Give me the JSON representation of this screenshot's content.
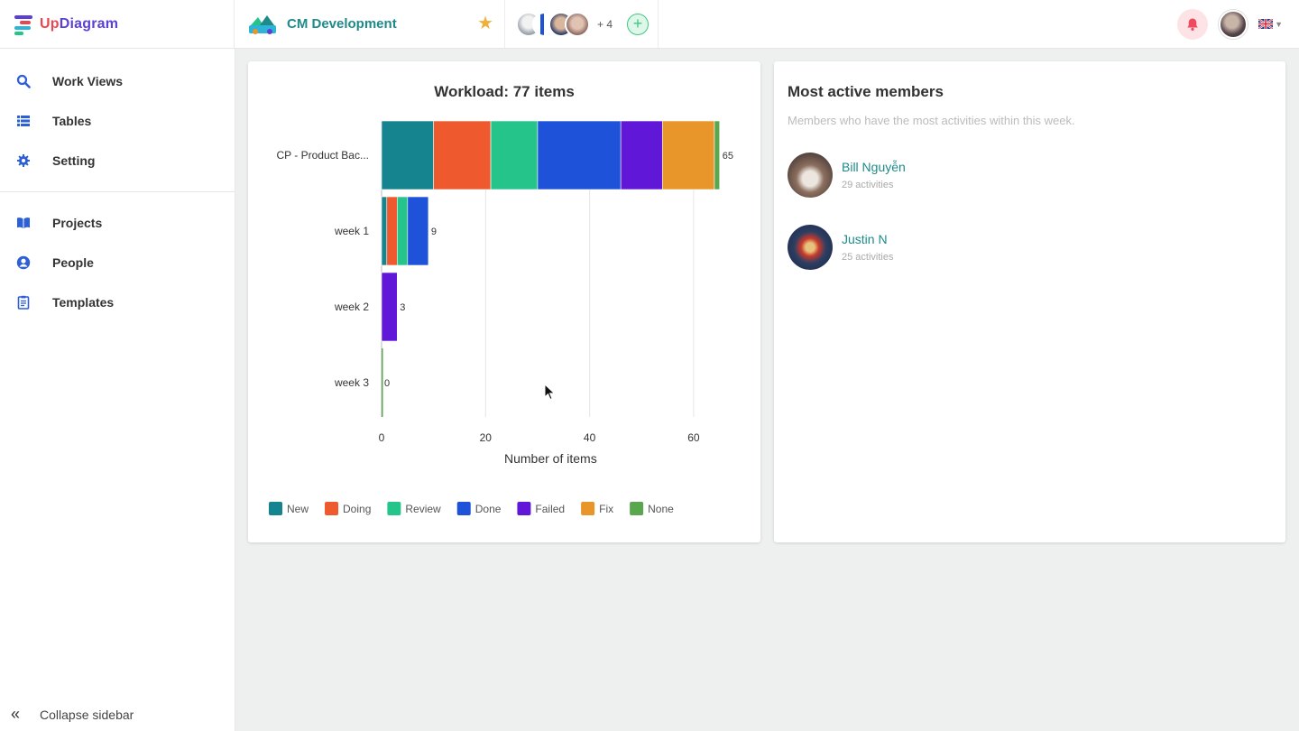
{
  "app": {
    "logo_prefix": "Up",
    "logo_suffix": "Diagram"
  },
  "project": {
    "title": "CM Development"
  },
  "members_bar": {
    "more_label": "+ 4",
    "add_label": "+"
  },
  "sidebar": {
    "items": [
      {
        "label": "Work Views",
        "icon": "search-icon"
      },
      {
        "label": "Tables",
        "icon": "list-icon"
      },
      {
        "label": "Setting",
        "icon": "gear-icon"
      },
      {
        "label": "Projects",
        "icon": "book-icon"
      },
      {
        "label": "People",
        "icon": "person-icon"
      },
      {
        "label": "Templates",
        "icon": "clipboard-icon"
      }
    ],
    "collapse_label": "Collapse sidebar"
  },
  "chart_card": {
    "title": "Workload: 77 items"
  },
  "members_card": {
    "title": "Most active members",
    "subtitle": "Members who have the most activities within this week.",
    "members": [
      {
        "name": "Bill Nguyễn",
        "activities": "29 activities"
      },
      {
        "name": "Justin N",
        "activities": "25 activities"
      }
    ]
  },
  "colors": {
    "New": "#16848f",
    "Doing": "#ee5a2e",
    "Review": "#24c48b",
    "Done": "#1e52d8",
    "Failed": "#6117d8",
    "Fix": "#e8952a",
    "None": "#5aa64e"
  },
  "chart_data": {
    "type": "bar",
    "orientation": "horizontal",
    "stacked": true,
    "title": "Workload: 77 items",
    "xlabel": "Number of items",
    "ylabel": "",
    "xlim": [
      0,
      65
    ],
    "xticks": [
      0,
      20,
      40,
      60
    ],
    "grid": true,
    "legend_position": "bottom",
    "categories": [
      "CP - Product Bac...",
      "week 1",
      "week 2",
      "week 3"
    ],
    "totals": [
      65,
      9,
      3,
      0
    ],
    "series": [
      {
        "name": "New",
        "values": [
          10,
          1,
          0,
          0
        ]
      },
      {
        "name": "Doing",
        "values": [
          11,
          2,
          0,
          0
        ]
      },
      {
        "name": "Review",
        "values": [
          9,
          2,
          0,
          0
        ]
      },
      {
        "name": "Done",
        "values": [
          16,
          4,
          0,
          0
        ]
      },
      {
        "name": "Failed",
        "values": [
          8,
          0,
          3,
          0
        ]
      },
      {
        "name": "Fix",
        "values": [
          10,
          0,
          0,
          0
        ]
      },
      {
        "name": "None",
        "values": [
          1,
          0,
          0,
          0
        ]
      }
    ]
  }
}
